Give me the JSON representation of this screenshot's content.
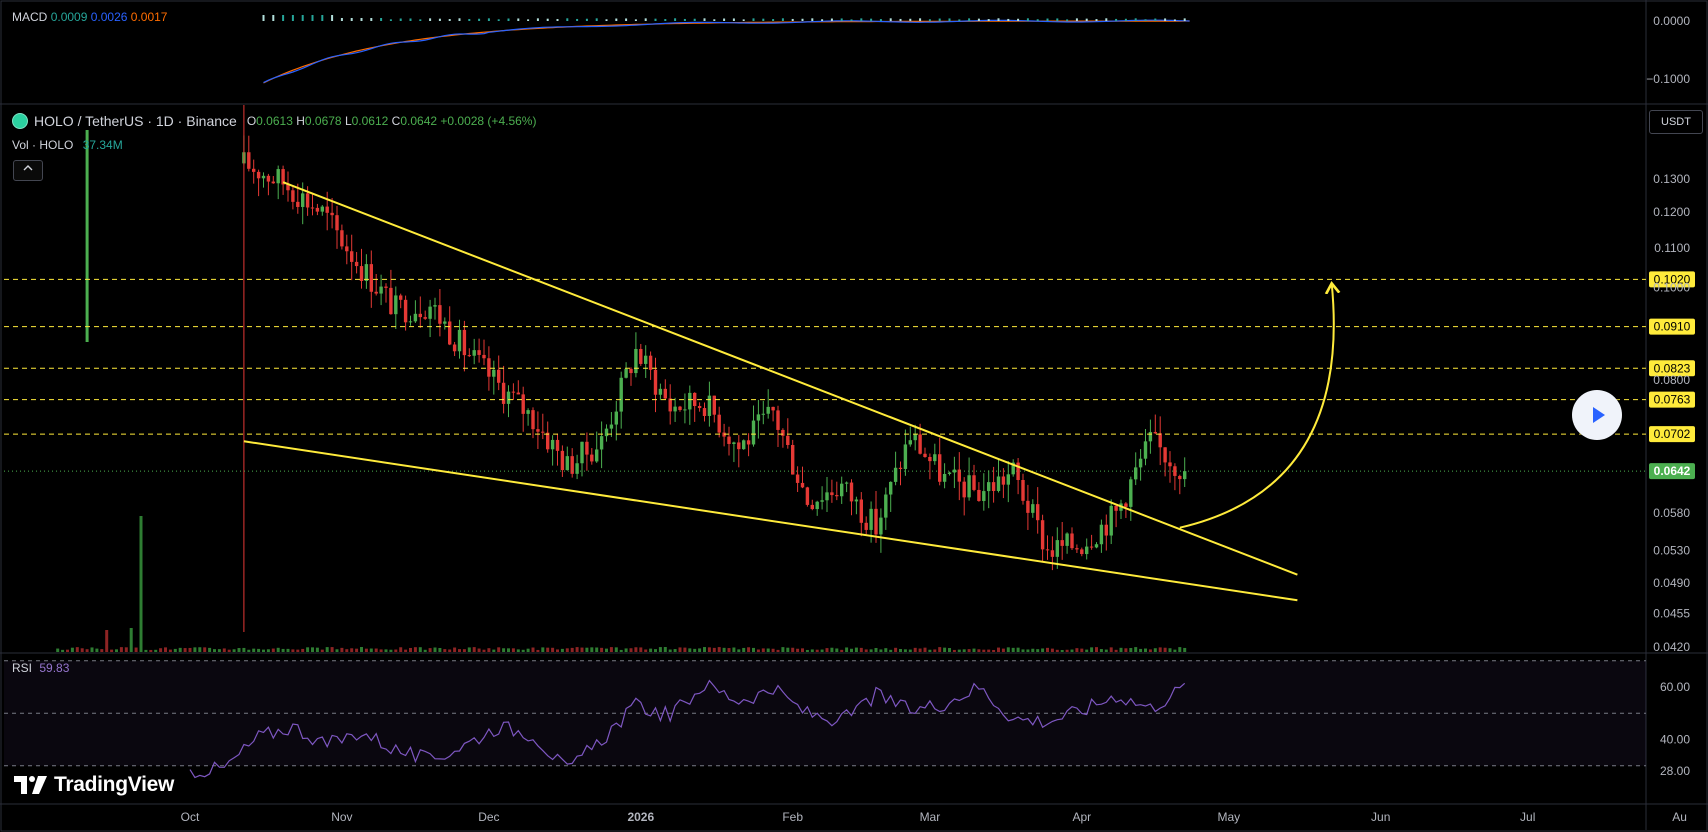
{
  "macd": {
    "label": "MACD",
    "value1": "0.0009",
    "value2": "0.0026",
    "value3": "0.0017",
    "axis_ticks": [
      "0.0000",
      "−0.1000"
    ]
  },
  "symbol": {
    "title": "HOLO / TetherUS · 1D · Binance",
    "open_key": "O",
    "open": "0.0613",
    "high_key": "H",
    "high": "0.0678",
    "low_key": "L",
    "low": "0.0612",
    "close_key": "C",
    "close": "0.0642",
    "change": "+0.0028 (+4.56%)"
  },
  "volume": {
    "label": "Vol · HOLO",
    "value": "37.34M"
  },
  "collapse_icon": "chevron-up-icon",
  "currency": "USDT",
  "rsi": {
    "label": "RSI",
    "value": "59.83",
    "axis_ticks": [
      "60.00",
      "40.00",
      "28.00"
    ]
  },
  "brand": {
    "name": "TradingView",
    "icon": "tradingview-logo-icon"
  },
  "play_icon": "play-icon",
  "colors": {
    "up": "#4caf50",
    "down": "#e53935",
    "trendline": "#ffeb3b",
    "level": "#ffeb3b",
    "macd": "#2962ff",
    "signal": "#ff6d00",
    "rsi": "#7e57c2",
    "price_tag": "#4caf50"
  },
  "chart_data": {
    "type": "candlestick",
    "title": "HOLO / TetherUS · 1D · Binance",
    "price_axis_ticks": [
      "0.1300",
      "0.1200",
      "0.1100",
      "0.1000",
      "0.0800",
      "0.0580",
      "0.0530",
      "0.0490",
      "0.0455",
      "0.0420"
    ],
    "x_axis_labels": [
      "Oct",
      "Nov",
      "Dec",
      "2026",
      "Feb",
      "Mar",
      "Apr",
      "May",
      "Jun",
      "Jul",
      "Au"
    ],
    "horizontal_levels": [
      "0.1020",
      "0.0910",
      "0.0823",
      "0.0763",
      "0.0702"
    ],
    "current_price": "0.0642",
    "series_close_points": [
      [
        "Oct 12",
        0.135
      ],
      [
        "Oct 20",
        0.129
      ],
      [
        "Oct 28",
        0.12
      ],
      [
        "Nov 5",
        0.105
      ],
      [
        "Nov 12",
        0.095
      ],
      [
        "Nov 19",
        0.096
      ],
      [
        "Nov 26",
        0.086
      ],
      [
        "Dec 3",
        0.079
      ],
      [
        "Dec 10",
        0.073
      ],
      [
        "Dec 17",
        0.065
      ],
      [
        "Dec 24",
        0.069
      ],
      [
        "Dec 31",
        0.086
      ],
      [
        "Jan 7",
        0.075
      ],
      [
        "Jan 14",
        0.076
      ],
      [
        "Jan 21",
        0.068
      ],
      [
        "Jan 28",
        0.074
      ],
      [
        "Feb 4",
        0.06
      ],
      [
        "Feb 11",
        0.062
      ],
      [
        "Feb 18",
        0.056
      ],
      [
        "Feb 25",
        0.07
      ],
      [
        "Mar 4",
        0.063
      ],
      [
        "Mar 11",
        0.061
      ],
      [
        "Mar 18",
        0.064
      ],
      [
        "Mar 25",
        0.053
      ],
      [
        "Apr 1",
        0.054
      ],
      [
        "Apr 8",
        0.058
      ],
      [
        "Apr 15",
        0.069
      ],
      [
        "Apr 22",
        0.0642
      ]
    ],
    "trendlines": [
      {
        "name": "upper",
        "from": [
          "Oct 20",
          0.129
        ],
        "to": [
          "May 15",
          0.05
        ]
      },
      {
        "name": "lower",
        "from": [
          "Oct 12",
          0.069
        ],
        "to": [
          "May 15",
          0.047
        ]
      }
    ],
    "projection": {
      "from": [
        "Apr 21",
        0.056
      ],
      "to": [
        "May 22",
        0.102
      ]
    },
    "rsi_values": [
      28,
      29,
      41,
      45,
      38,
      43,
      36,
      32,
      38,
      45,
      42,
      28,
      40,
      53,
      49,
      61,
      55,
      59,
      50,
      47,
      57,
      51,
      54,
      60,
      48,
      47,
      51,
      57,
      52,
      60
    ]
  }
}
